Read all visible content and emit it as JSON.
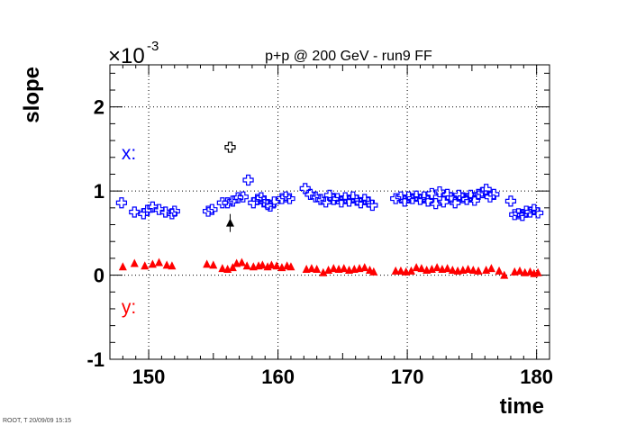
{
  "chart_data": {
    "type": "scatter",
    "title": "p+p @ 200 GeV - run9 FF",
    "xlabel": "time",
    "ylabel": "slope",
    "y_multiplier": "×10",
    "y_multiplier_exponent": "-3",
    "xlim": [
      147,
      181
    ],
    "ylim": [
      -1,
      2.5
    ],
    "x_ticks": [
      150,
      160,
      170,
      180
    ],
    "y_ticks": [
      -1,
      0,
      1,
      2
    ],
    "grid": true,
    "annotations": [
      {
        "text": "x:",
        "color": "#0000ff",
        "x": 147.9,
        "y": 1.45
      },
      {
        "text": "y:",
        "color": "#ff0000",
        "x": 147.9,
        "y": -0.38
      }
    ],
    "footer_text": "ROOT, T 20/09/09 15:15",
    "series": [
      {
        "marker": "open-cross",
        "color": "#0000ff",
        "points": [
          [
            147.9,
            0.86
          ],
          [
            148.9,
            0.75
          ],
          [
            149.6,
            0.73
          ],
          [
            149.9,
            0.77
          ],
          [
            150.3,
            0.81
          ],
          [
            150.8,
            0.78
          ],
          [
            151.3,
            0.75
          ],
          [
            151.8,
            0.73
          ],
          [
            152.0,
            0.76
          ],
          [
            154.6,
            0.76
          ],
          [
            154.9,
            0.78
          ],
          [
            155.7,
            0.86
          ],
          [
            156.1,
            0.86
          ],
          [
            156.5,
            0.88
          ],
          [
            156.9,
            0.92
          ],
          [
            157.3,
            0.93
          ],
          [
            157.7,
            1.13
          ],
          [
            158.1,
            0.86
          ],
          [
            158.4,
            0.9
          ],
          [
            158.7,
            0.92
          ],
          [
            158.9,
            0.87
          ],
          [
            159.2,
            0.84
          ],
          [
            159.4,
            0.82
          ],
          [
            159.7,
            0.87
          ],
          [
            160.3,
            0.91
          ],
          [
            160.6,
            0.93
          ],
          [
            160.9,
            0.91
          ],
          [
            162.1,
            1.03
          ],
          [
            162.5,
            0.96
          ],
          [
            162.9,
            0.93
          ],
          [
            163.3,
            0.9
          ],
          [
            163.7,
            0.87
          ],
          [
            164.0,
            0.95
          ],
          [
            164.3,
            0.9
          ],
          [
            164.6,
            0.91
          ],
          [
            164.9,
            0.87
          ],
          [
            165.2,
            0.92
          ],
          [
            165.5,
            0.88
          ],
          [
            165.8,
            0.93
          ],
          [
            166.1,
            0.89
          ],
          [
            166.4,
            0.86
          ],
          [
            166.7,
            0.9
          ],
          [
            167.0,
            0.87
          ],
          [
            167.3,
            0.83
          ],
          [
            169.1,
            0.91
          ],
          [
            169.5,
            0.93
          ],
          [
            169.8,
            0.88
          ],
          [
            170.1,
            0.93
          ],
          [
            170.4,
            0.91
          ],
          [
            170.7,
            0.94
          ],
          [
            171.0,
            0.9
          ],
          [
            171.3,
            0.93
          ],
          [
            171.6,
            0.88
          ],
          [
            171.9,
            0.97
          ],
          [
            172.2,
            0.85
          ],
          [
            172.5,
            0.99
          ],
          [
            172.8,
            0.87
          ],
          [
            173.1,
            0.96
          ],
          [
            173.4,
            0.92
          ],
          [
            173.7,
            0.86
          ],
          [
            174.0,
            0.95
          ],
          [
            174.3,
            0.92
          ],
          [
            174.6,
            0.9
          ],
          [
            174.9,
            0.95
          ],
          [
            175.2,
            0.89
          ],
          [
            175.5,
            0.96
          ],
          [
            175.8,
            0.98
          ],
          [
            176.1,
            1.02
          ],
          [
            176.4,
            0.93
          ],
          [
            176.7,
            0.96
          ],
          [
            178.0,
            0.88
          ],
          [
            178.3,
            0.72
          ],
          [
            178.6,
            0.73
          ],
          [
            178.9,
            0.71
          ],
          [
            179.2,
            0.76
          ],
          [
            179.5,
            0.75
          ],
          [
            179.8,
            0.78
          ],
          [
            180.1,
            0.74
          ]
        ]
      },
      {
        "marker": "open-cross",
        "color": "#000000",
        "points": [
          [
            156.3,
            1.52
          ]
        ]
      },
      {
        "marker": "filled-triangle",
        "color": "#000000",
        "points": [
          [
            156.3,
            0.62
          ]
        ]
      },
      {
        "marker": "filled-triangle",
        "color": "#ff0000",
        "points": [
          [
            148.0,
            0.1
          ],
          [
            148.9,
            0.14
          ],
          [
            149.7,
            0.11
          ],
          [
            150.3,
            0.13
          ],
          [
            150.8,
            0.15
          ],
          [
            151.4,
            0.12
          ],
          [
            151.8,
            0.11
          ],
          [
            154.5,
            0.13
          ],
          [
            155.0,
            0.12
          ],
          [
            155.7,
            0.08
          ],
          [
            156.1,
            0.07
          ],
          [
            156.5,
            0.09
          ],
          [
            156.8,
            0.14
          ],
          [
            157.2,
            0.15
          ],
          [
            157.6,
            0.11
          ],
          [
            158.1,
            0.1
          ],
          [
            158.5,
            0.11
          ],
          [
            158.8,
            0.12
          ],
          [
            159.2,
            0.1
          ],
          [
            159.5,
            0.12
          ],
          [
            159.9,
            0.11
          ],
          [
            160.3,
            0.09
          ],
          [
            160.7,
            0.11
          ],
          [
            161.0,
            0.1
          ],
          [
            162.2,
            0.07
          ],
          [
            162.6,
            0.08
          ],
          [
            163.0,
            0.07
          ],
          [
            163.5,
            0.03
          ],
          [
            163.9,
            0.06
          ],
          [
            164.3,
            0.08
          ],
          [
            164.7,
            0.07
          ],
          [
            165.1,
            0.08
          ],
          [
            165.5,
            0.06
          ],
          [
            165.9,
            0.07
          ],
          [
            166.3,
            0.08
          ],
          [
            166.7,
            0.09
          ],
          [
            167.1,
            0.06
          ],
          [
            167.4,
            0.04
          ],
          [
            169.1,
            0.05
          ],
          [
            169.5,
            0.05
          ],
          [
            169.9,
            0.04
          ],
          [
            170.3,
            0.05
          ],
          [
            170.7,
            0.09
          ],
          [
            171.1,
            0.08
          ],
          [
            171.5,
            0.06
          ],
          [
            171.9,
            0.07
          ],
          [
            172.3,
            0.09
          ],
          [
            172.7,
            0.07
          ],
          [
            173.1,
            0.08
          ],
          [
            173.5,
            0.06
          ],
          [
            173.9,
            0.05
          ],
          [
            174.3,
            0.06
          ],
          [
            174.7,
            0.07
          ],
          [
            175.1,
            0.06
          ],
          [
            175.5,
            0.05
          ],
          [
            176.1,
            0.06
          ],
          [
            176.5,
            0.08
          ],
          [
            177.1,
            0.05
          ],
          [
            177.5,
            0.0
          ],
          [
            178.3,
            0.04
          ],
          [
            178.7,
            0.05
          ],
          [
            179.1,
            0.03
          ],
          [
            179.5,
            0.04
          ],
          [
            179.8,
            0.02
          ],
          [
            180.1,
            0.03
          ]
        ]
      }
    ]
  }
}
